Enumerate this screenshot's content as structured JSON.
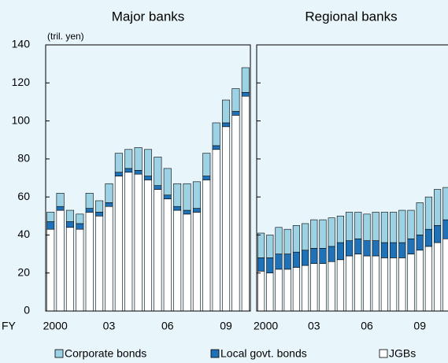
{
  "chart_data": [
    {
      "type": "bar",
      "stacked": true,
      "title": "Major banks",
      "ylabel": "(tril. yen)",
      "xlabel": "FY",
      "categories": [
        "2000",
        null,
        null,
        null,
        null,
        null,
        "03",
        null,
        null,
        null,
        null,
        null,
        "06",
        null,
        null,
        null,
        null,
        null,
        "09",
        null,
        null
      ],
      "series": [
        {
          "name": "JGBs",
          "color": "#ffffff",
          "values": [
            43,
            53,
            44,
            43,
            52,
            50,
            55,
            71,
            73,
            72,
            69,
            64,
            59,
            53,
            51,
            52,
            69,
            85,
            97,
            103,
            113
          ]
        },
        {
          "name": "Local govt. bonds",
          "color": "#1f72b8",
          "values": [
            4,
            2,
            3,
            3,
            2,
            2,
            2,
            2,
            2,
            2,
            2,
            2,
            2,
            2,
            2,
            2,
            2,
            2,
            2,
            2,
            2
          ]
        },
        {
          "name": "Corporate bonds",
          "color": "#9dd2e5",
          "values": [
            5,
            7,
            6,
            5,
            8,
            6,
            10,
            10,
            10,
            12,
            14,
            15,
            14,
            12,
            14,
            14,
            12,
            12,
            12,
            12,
            13
          ]
        }
      ],
      "ylim": [
        0,
        140
      ],
      "yticks": [
        0,
        20,
        40,
        60,
        80,
        100,
        120,
        140
      ]
    },
    {
      "type": "bar",
      "stacked": true,
      "title": "Regional banks",
      "categories": [
        "2000",
        null,
        null,
        null,
        null,
        null,
        "03",
        null,
        null,
        null,
        null,
        null,
        "06",
        null,
        null,
        null,
        null,
        null,
        "09",
        null,
        null,
        null
      ],
      "series": [
        {
          "name": "JGBs",
          "color": "#ffffff",
          "values": [
            21,
            20,
            22,
            22,
            23,
            24,
            25,
            25,
            26,
            27,
            29,
            30,
            29,
            29,
            28,
            28,
            28,
            30,
            32,
            34,
            36,
            38
          ]
        },
        {
          "name": "Local govt. bonds",
          "color": "#1f72b8",
          "values": [
            7,
            8,
            8,
            8,
            8,
            8,
            8,
            8,
            8,
            9,
            8,
            8,
            8,
            8,
            8,
            8,
            8,
            8,
            8,
            9,
            9,
            10
          ]
        },
        {
          "name": "Corporate bonds",
          "color": "#9dd2e5",
          "values": [
            13,
            12,
            14,
            13,
            14,
            14,
            15,
            15,
            15,
            14,
            15,
            14,
            14,
            15,
            16,
            16,
            17,
            15,
            17,
            17,
            19,
            17
          ]
        }
      ],
      "ylim": [
        0,
        140
      ],
      "yticks": [
        0,
        20,
        40,
        60,
        80,
        100,
        120,
        140
      ]
    }
  ]
}
